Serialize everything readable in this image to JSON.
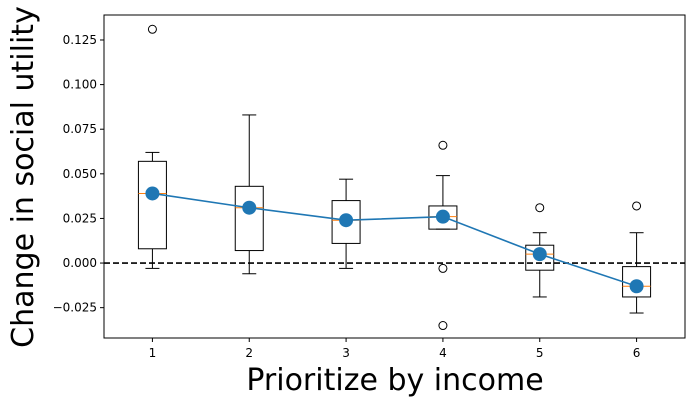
{
  "chart_data": {
    "type": "box",
    "xlabel": "Prioritize by income",
    "ylabel": "Change in social utility",
    "categories": [
      "1",
      "2",
      "3",
      "4",
      "5",
      "6"
    ],
    "ylim": [
      -0.042,
      0.139
    ],
    "yticks": [
      -0.025,
      0.0,
      0.025,
      0.05,
      0.075,
      0.1,
      0.125
    ],
    "ytick_labels": [
      "−0.025",
      "0.000",
      "0.025",
      "0.050",
      "0.075",
      "0.100",
      "0.125"
    ],
    "reference_line": {
      "y": 0.0,
      "style": "dashed",
      "color": "#000000"
    },
    "boxes": [
      {
        "x": 1,
        "whisker_low": -0.003,
        "q1": 0.008,
        "median": 0.039,
        "q3": 0.057,
        "whisker_high": 0.062,
        "outliers": [
          0.131
        ]
      },
      {
        "x": 2,
        "whisker_low": -0.006,
        "q1": 0.007,
        "median": 0.031,
        "q3": 0.043,
        "whisker_high": 0.083,
        "outliers": []
      },
      {
        "x": 3,
        "whisker_low": -0.003,
        "q1": 0.011,
        "median": 0.024,
        "q3": 0.035,
        "whisker_high": 0.047,
        "outliers": []
      },
      {
        "x": 4,
        "whisker_low": 0.019,
        "q1": 0.019,
        "median": 0.026,
        "q3": 0.032,
        "whisker_high": 0.049,
        "outliers": [
          0.066,
          -0.003,
          -0.035
        ]
      },
      {
        "x": 5,
        "whisker_low": -0.019,
        "q1": -0.004,
        "median": 0.005,
        "q3": 0.01,
        "whisker_high": 0.017,
        "outliers": [
          0.031
        ]
      },
      {
        "x": 6,
        "whisker_low": -0.028,
        "q1": -0.019,
        "median": -0.013,
        "q3": -0.002,
        "whisker_high": 0.017,
        "outliers": [
          0.032
        ]
      }
    ],
    "mean_series": {
      "x": [
        1,
        2,
        3,
        4,
        5,
        6
      ],
      "values": [
        0.039,
        0.031,
        0.024,
        0.026,
        0.005,
        -0.013
      ]
    },
    "colors": {
      "box": "#000000",
      "median": "#ff7f0e",
      "mean_line": "#1f77b4",
      "mean_marker": "#1f77b4"
    },
    "grid": false
  }
}
